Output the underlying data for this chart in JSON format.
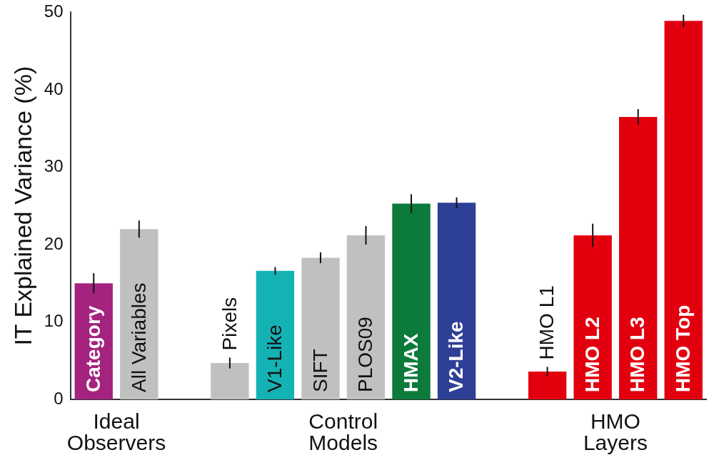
{
  "chart_data": {
    "type": "bar",
    "ylabel": "IT Explained Variance (%)",
    "categories": [
      "Category",
      "All Variables",
      null,
      "Pixels",
      "V1-Like",
      "SIFT",
      "PLOS09",
      "HMAX",
      "V2-Like",
      null,
      "HMO L1",
      "HMO L2",
      "HMO L3",
      "HMO Top"
    ],
    "values": [
      15,
      22,
      null,
      4.7,
      16.6,
      18.3,
      21.2,
      25.3,
      25.4,
      null,
      3.6,
      21.2,
      36.5,
      48.9
    ],
    "colors": [
      "#a3237f",
      "#c0c0c0",
      null,
      "#c0c0c0",
      "#15b2b4",
      "#c0c0c0",
      "#c0c0c0",
      "#0b7a3b",
      "#2e3f96",
      null,
      "#e2000f",
      "#e2000f",
      "#e2000f",
      "#e2000f"
    ],
    "errors": [
      1.3,
      1.1,
      null,
      0.7,
      0.5,
      0.7,
      1.2,
      1.2,
      0.7,
      null,
      0.6,
      1.5,
      1.0,
      0.8
    ],
    "ylim": [
      0,
      50
    ],
    "yticks": [
      0,
      10,
      20,
      30,
      40,
      50
    ],
    "grid": false,
    "legend": false,
    "annotations": [
      "Ideal\nObservers",
      "Control\nModels",
      "HMO\nLayers"
    ]
  }
}
